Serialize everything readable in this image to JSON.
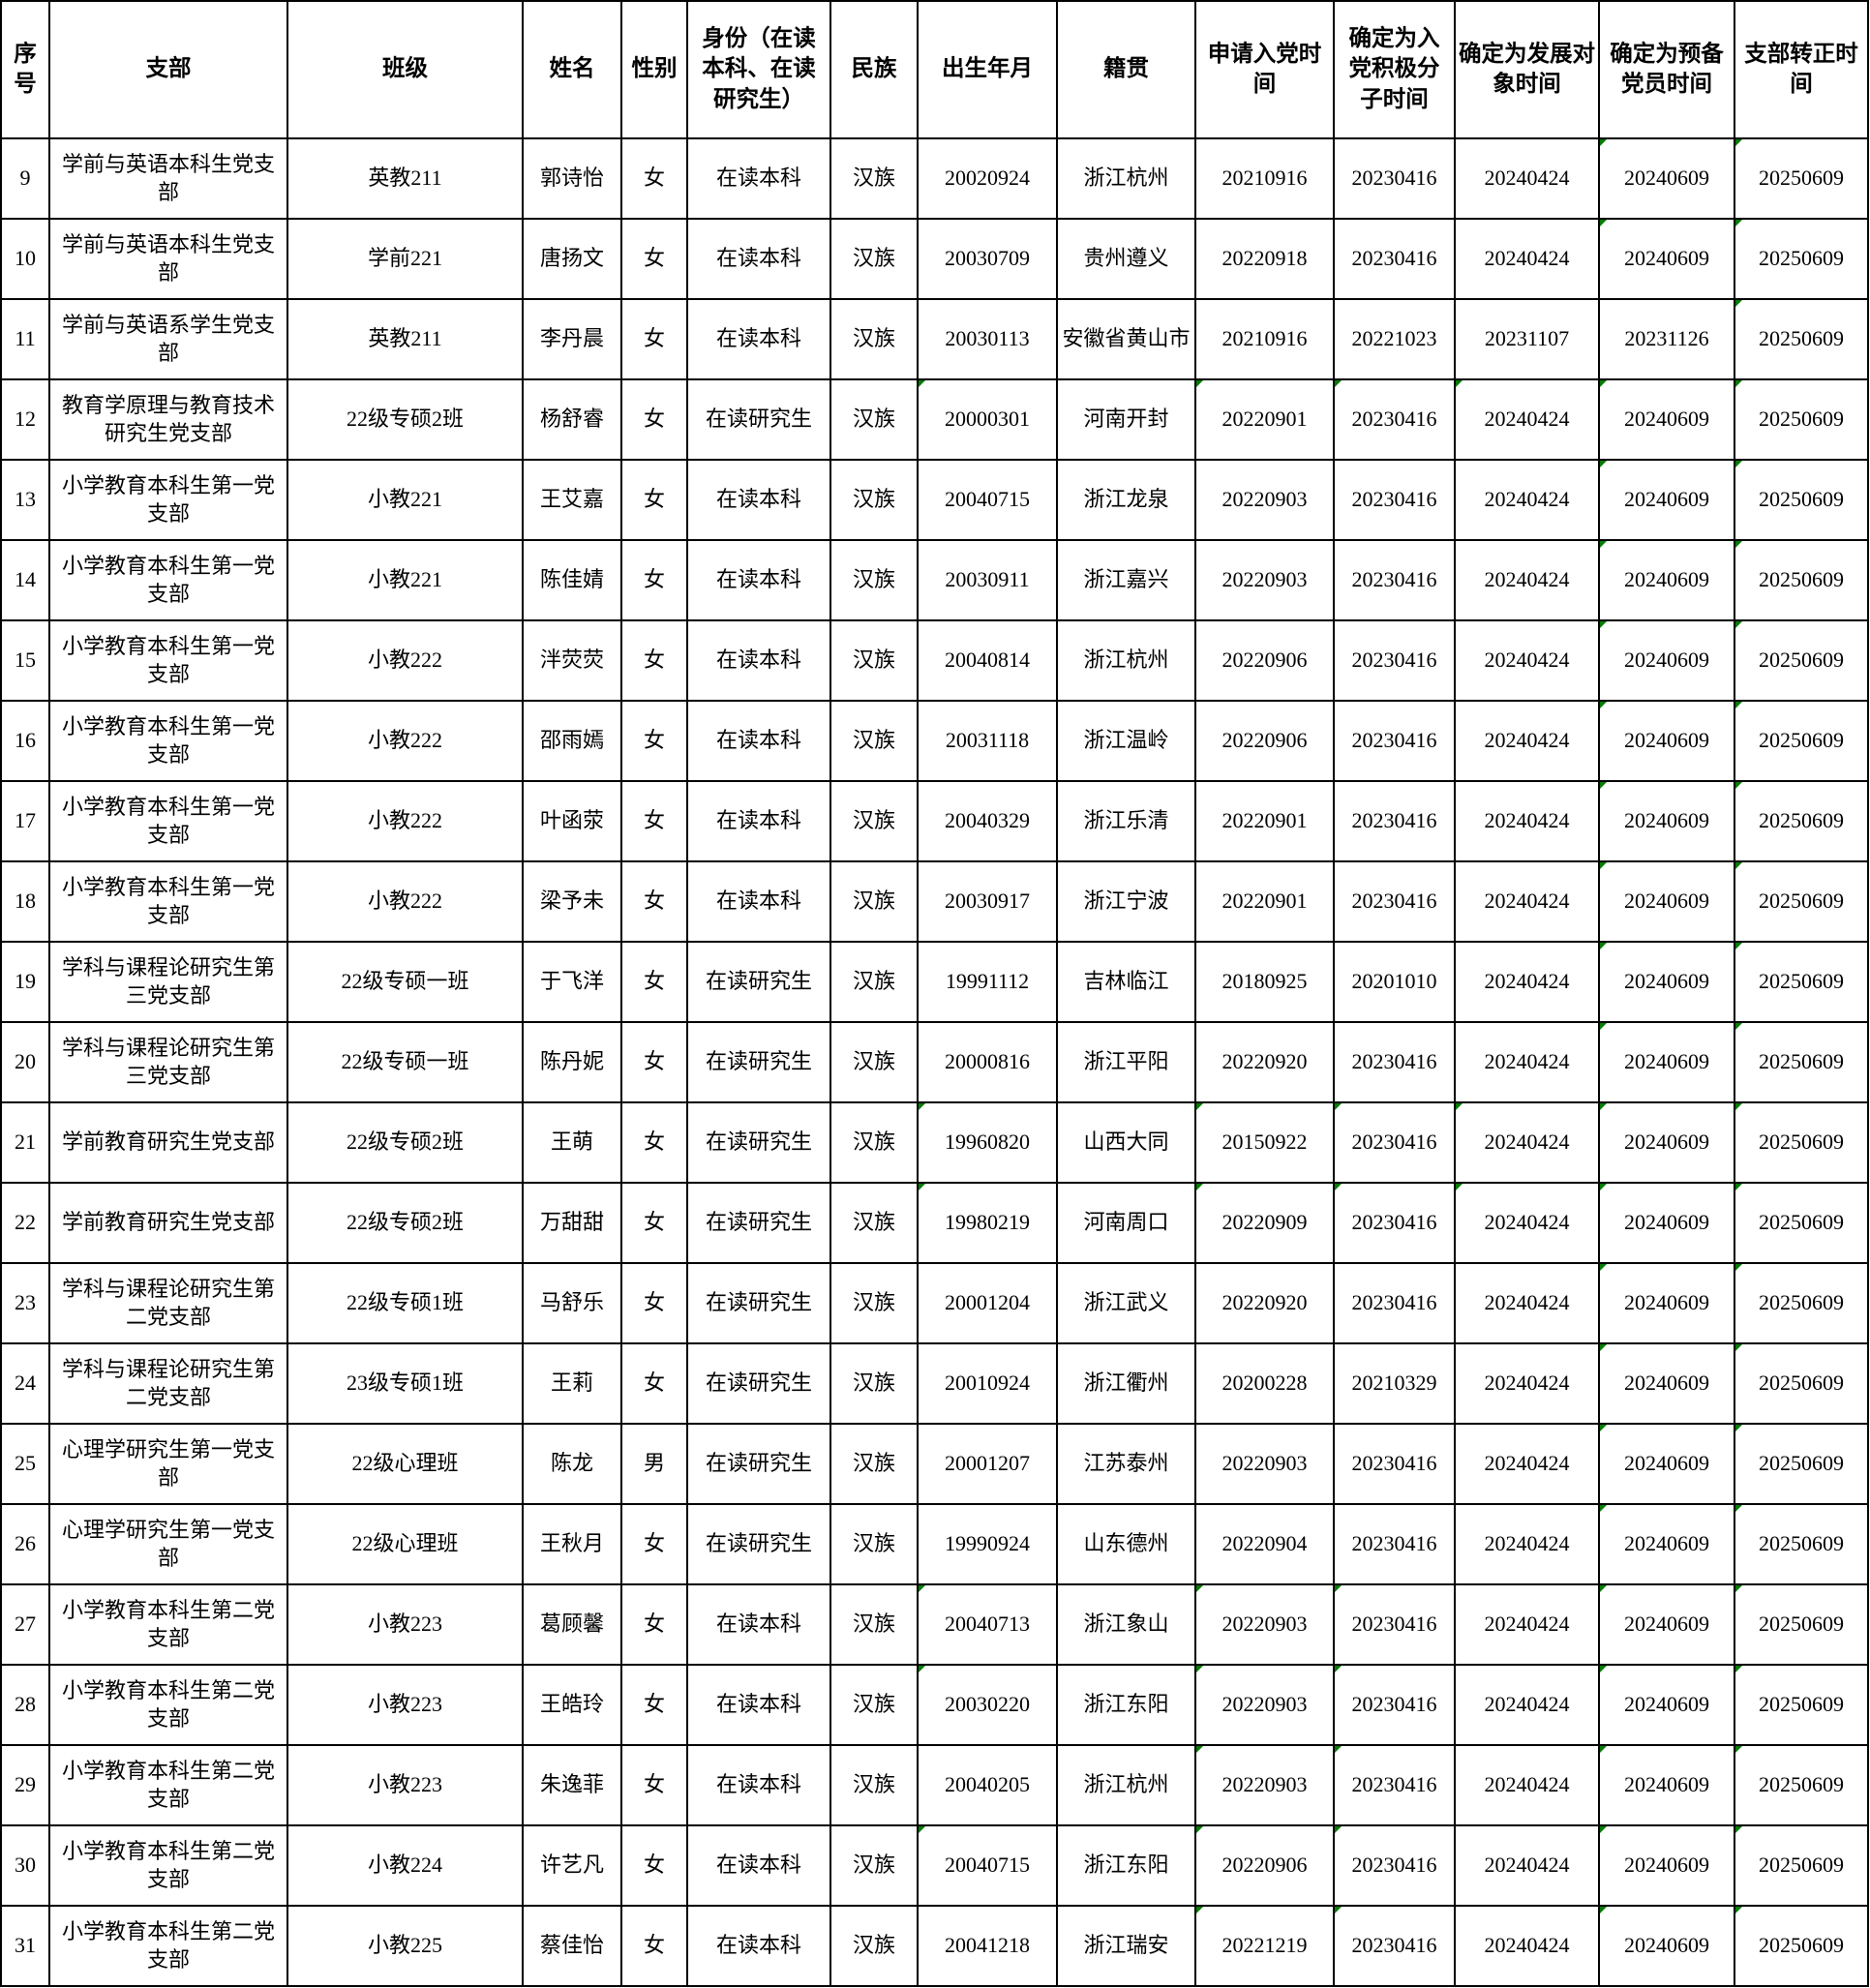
{
  "colors": {
    "grid_border": "#000000",
    "text": "#000000",
    "background": "#ffffff",
    "green_marker": "#067c06"
  },
  "table": {
    "headers": [
      "序号",
      "支部",
      "班级",
      "姓名",
      "性别",
      "身份（在读本科、在读研究生）",
      "民族",
      "出生年月",
      "籍贯",
      "申请入党时间",
      "确定为入党积极分子时间",
      "确定为发展对象时间",
      "确定为预备党员时间",
      "支部转正时间"
    ],
    "rows": [
      {
        "cells": [
          "9",
          "学前与英语本科生党支部",
          "英教211",
          "郭诗怡",
          "女",
          "在读本科",
          "汉族",
          "20020924",
          "浙江杭州",
          "20210916",
          "20230416",
          "20240424",
          "20240609",
          "20250609"
        ],
        "green_marker_cols": [
          12,
          13
        ]
      },
      {
        "cells": [
          "10",
          "学前与英语本科生党支部",
          "学前221",
          "唐扬文",
          "女",
          "在读本科",
          "汉族",
          "20030709",
          "贵州遵义",
          "20220918",
          "20230416",
          "20240424",
          "20240609",
          "20250609"
        ],
        "green_marker_cols": [
          12,
          13
        ]
      },
      {
        "cells": [
          "11",
          "学前与英语系学生党支部",
          "英教211",
          "李丹晨",
          "女",
          "在读本科",
          "汉族",
          "20030113",
          "安徽省黄山市",
          "20210916",
          "20221023",
          "20231107",
          "20231126",
          "20250609"
        ],
        "green_marker_cols": [
          13
        ]
      },
      {
        "cells": [
          "12",
          "教育学原理与教育技术研究生党支部",
          "22级专硕2班",
          "杨舒睿",
          "女",
          "在读研究生",
          "汉族",
          "20000301",
          "河南开封",
          "20220901",
          "20230416",
          "20240424",
          "20240609",
          "20250609"
        ],
        "green_marker_cols": [
          7,
          9,
          10,
          11,
          12,
          13
        ]
      },
      {
        "cells": [
          "13",
          "小学教育本科生第一党支部",
          "小教221",
          "王艾嘉",
          "女",
          "在读本科",
          "汉族",
          "20040715",
          "浙江龙泉",
          "20220903",
          "20230416",
          "20240424",
          "20240609",
          "20250609"
        ],
        "green_marker_cols": [
          12,
          13
        ]
      },
      {
        "cells": [
          "14",
          "小学教育本科生第一党支部",
          "小教221",
          "陈佳婧",
          "女",
          "在读本科",
          "汉族",
          "20030911",
          "浙江嘉兴",
          "20220903",
          "20230416",
          "20240424",
          "20240609",
          "20250609"
        ],
        "green_marker_cols": [
          12,
          13
        ]
      },
      {
        "cells": [
          "15",
          "小学教育本科生第一党支部",
          "小教222",
          "泮荧荧",
          "女",
          "在读本科",
          "汉族",
          "20040814",
          "浙江杭州",
          "20220906",
          "20230416",
          "20240424",
          "20240609",
          "20250609"
        ],
        "green_marker_cols": [
          12,
          13
        ]
      },
      {
        "cells": [
          "16",
          "小学教育本科生第一党支部",
          "小教222",
          "邵雨嫣",
          "女",
          "在读本科",
          "汉族",
          "20031118",
          "浙江温岭",
          "20220906",
          "20230416",
          "20240424",
          "20240609",
          "20250609"
        ],
        "green_marker_cols": [
          12,
          13
        ]
      },
      {
        "cells": [
          "17",
          "小学教育本科生第一党支部",
          "小教222",
          "叶函荥",
          "女",
          "在读本科",
          "汉族",
          "20040329",
          "浙江乐清",
          "20220901",
          "20230416",
          "20240424",
          "20240609",
          "20250609"
        ],
        "green_marker_cols": [
          12,
          13
        ]
      },
      {
        "cells": [
          "18",
          "小学教育本科生第一党支部",
          "小教222",
          "梁予未",
          "女",
          "在读本科",
          "汉族",
          "20030917",
          "浙江宁波",
          "20220901",
          "20230416",
          "20240424",
          "20240609",
          "20250609"
        ],
        "green_marker_cols": [
          12,
          13
        ]
      },
      {
        "cells": [
          "19",
          "学科与课程论研究生第三党支部",
          "22级专硕一班",
          "于飞洋",
          "女",
          "在读研究生",
          "汉族",
          "19991112",
          "吉林临江",
          "20180925",
          "20201010",
          "20240424",
          "20240609",
          "20250609"
        ],
        "green_marker_cols": [
          12,
          13
        ]
      },
      {
        "cells": [
          "20",
          "学科与课程论研究生第三党支部",
          "22级专硕一班",
          "陈丹妮",
          "女",
          "在读研究生",
          "汉族",
          "20000816",
          "浙江平阳",
          "20220920",
          "20230416",
          "20240424",
          "20240609",
          "20250609"
        ],
        "green_marker_cols": [
          12,
          13
        ]
      },
      {
        "cells": [
          "21",
          "学前教育研究生党支部",
          "22级专硕2班",
          "王萌",
          "女",
          "在读研究生",
          "汉族",
          "19960820",
          "山西大同",
          "20150922",
          "20230416",
          "20240424",
          "20240609",
          "20250609"
        ],
        "green_marker_cols": [
          7,
          9,
          10,
          11,
          12,
          13
        ]
      },
      {
        "cells": [
          "22",
          "学前教育研究生党支部",
          "22级专硕2班",
          "万甜甜",
          "女",
          "在读研究生",
          "汉族",
          "19980219",
          "河南周口",
          "20220909",
          "20230416",
          "20240424",
          "20240609",
          "20250609"
        ],
        "green_marker_cols": [
          7,
          9,
          10,
          11,
          12,
          13
        ]
      },
      {
        "cells": [
          "23",
          "学科与课程论研究生第二党支部",
          "22级专硕1班",
          "马舒乐",
          "女",
          "在读研究生",
          "汉族",
          "20001204",
          "浙江武义",
          "20220920",
          "20230416",
          "20240424",
          "20240609",
          "20250609"
        ],
        "green_marker_cols": [
          12,
          13
        ]
      },
      {
        "cells": [
          "24",
          "学科与课程论研究生第二党支部",
          "23级专硕1班",
          "王莉",
          "女",
          "在读研究生",
          "汉族",
          "20010924",
          "浙江衢州",
          "20200228",
          "20210329",
          "20240424",
          "20240609",
          "20250609"
        ],
        "green_marker_cols": [
          12,
          13
        ]
      },
      {
        "cells": [
          "25",
          "心理学研究生第一党支部",
          "22级心理班",
          "陈龙",
          "男",
          "在读研究生",
          "汉族",
          "20001207",
          "江苏泰州",
          "20220903",
          "20230416",
          "20240424",
          "20240609",
          "20250609"
        ],
        "green_marker_cols": [
          12,
          13
        ]
      },
      {
        "cells": [
          "26",
          "心理学研究生第一党支部",
          "22级心理班",
          "王秋月",
          "女",
          "在读研究生",
          "汉族",
          "19990924",
          "山东德州",
          "20220904",
          "20230416",
          "20240424",
          "20240609",
          "20250609"
        ],
        "green_marker_cols": [
          12,
          13
        ]
      },
      {
        "cells": [
          "27",
          "小学教育本科生第二党支部",
          "小教223",
          "葛顾馨",
          "女",
          "在读本科",
          "汉族",
          "20040713",
          "浙江象山",
          "20220903",
          "20230416",
          "20240424",
          "20240609",
          "20250609"
        ],
        "green_marker_cols": [
          7,
          9,
          10,
          12,
          13
        ]
      },
      {
        "cells": [
          "28",
          "小学教育本科生第二党支部",
          "小教223",
          "王皓玲",
          "女",
          "在读本科",
          "汉族",
          "20030220",
          "浙江东阳",
          "20220903",
          "20230416",
          "20240424",
          "20240609",
          "20250609"
        ],
        "green_marker_cols": [
          7,
          9,
          10,
          12,
          13
        ]
      },
      {
        "cells": [
          "29",
          "小学教育本科生第二党支部",
          "小教223",
          "朱逸菲",
          "女",
          "在读本科",
          "汉族",
          "20040205",
          "浙江杭州",
          "20220903",
          "20230416",
          "20240424",
          "20240609",
          "20250609"
        ],
        "green_marker_cols": [
          9,
          10,
          12,
          13
        ]
      },
      {
        "cells": [
          "30",
          "小学教育本科生第二党支部",
          "小教224",
          "许艺凡",
          "女",
          "在读本科",
          "汉族",
          "20040715",
          "浙江东阳",
          "20220906",
          "20230416",
          "20240424",
          "20240609",
          "20250609"
        ],
        "green_marker_cols": [
          7,
          9,
          10,
          12,
          13
        ]
      },
      {
        "cells": [
          "31",
          "小学教育本科生第二党支部",
          "小教225",
          "蔡佳怡",
          "女",
          "在读本科",
          "汉族",
          "20041218",
          "浙江瑞安",
          "20221219",
          "20230416",
          "20240424",
          "20240609",
          "20250609"
        ],
        "green_marker_cols": [
          9,
          10,
          12,
          13
        ]
      }
    ]
  }
}
